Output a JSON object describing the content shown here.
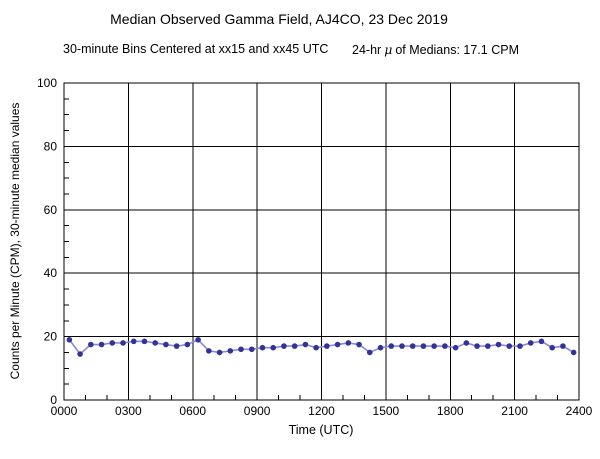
{
  "header": {
    "title": "Median Observed Gamma Field, AJ4CO, 23 Dec 2019",
    "subtitle_left": "30-minute Bins Centered at xx15 and xx45 UTC",
    "subtitle_right_pre": "24-hr",
    "mu": "μ",
    "subtitle_right_post": "of Medians: 17.1 CPM"
  },
  "chart_data": {
    "type": "line",
    "title": "Median Observed Gamma Field, AJ4CO, 23 Dec 2019",
    "subtitle": "30-minute Bins Centered at xx15 and xx45 UTC    24-hr μ of Medians: 17.1 CPM",
    "xlabel": "Time (UTC)",
    "ylabel": "Counts per Minute (CPM), 30-minute median values",
    "ylim": [
      0,
      100
    ],
    "xlim_hours": [
      0,
      24
    ],
    "y_tick_values": [
      0,
      20,
      40,
      60,
      80,
      100
    ],
    "y_minor_step": 5,
    "x_tick_hours": [
      0,
      3,
      6,
      9,
      12,
      15,
      18,
      21,
      24
    ],
    "x_tick_labels": [
      "0000",
      "0300",
      "0600",
      "0900",
      "1200",
      "1500",
      "1800",
      "2100",
      "2400"
    ],
    "x_minor_step_hours": 1,
    "grid": "full black major grid: horizontal every 20 CPM, vertical every 3 hours",
    "legend": "none",
    "marker_color": "#32329b",
    "line_color": "#8a8ad0",
    "grid_color": "#000000",
    "mean_of_medians_cpm": 17.1,
    "x_hours": [
      0.25,
      0.75,
      1.25,
      1.75,
      2.25,
      2.75,
      3.25,
      3.75,
      4.25,
      4.75,
      5.25,
      5.75,
      6.25,
      6.75,
      7.25,
      7.75,
      8.25,
      8.75,
      9.25,
      9.75,
      10.25,
      10.75,
      11.25,
      11.75,
      12.25,
      12.75,
      13.25,
      13.75,
      14.25,
      14.75,
      15.25,
      15.75,
      16.25,
      16.75,
      17.25,
      17.75,
      18.25,
      18.75,
      19.25,
      19.75,
      20.25,
      20.75,
      21.25,
      21.75,
      22.25,
      22.75,
      23.25,
      23.75
    ],
    "values": [
      19,
      14.5,
      17.5,
      17.5,
      18,
      18,
      18.5,
      18.5,
      18,
      17.5,
      17,
      17.5,
      19,
      15.5,
      15,
      15.5,
      16,
      16,
      16.5,
      16.5,
      17,
      17,
      17.5,
      16.5,
      17,
      17.5,
      18,
      17.5,
      15,
      16.5,
      17,
      17,
      17,
      17,
      17,
      17,
      16.5,
      18,
      17,
      17,
      17.5,
      17,
      17,
      18,
      18.5,
      16.5,
      17,
      15
    ]
  }
}
